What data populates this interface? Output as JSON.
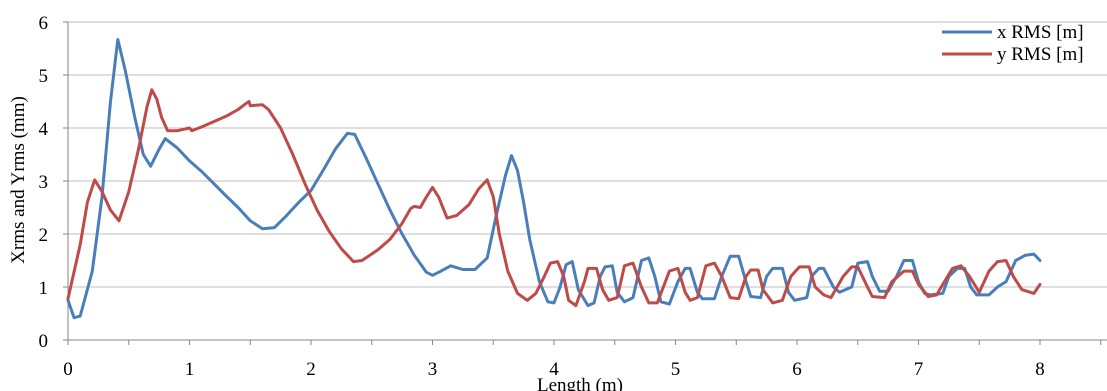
{
  "chart_data": {
    "type": "line",
    "title": "",
    "xlabel": "Length (m)",
    "ylabel": "Xrms and Yrms (mm)",
    "xlim": [
      0,
      8.6
    ],
    "ylim": [
      0,
      6
    ],
    "x_ticks": [
      "0",
      "1",
      "2",
      "3",
      "4",
      "5",
      "6",
      "7",
      "8"
    ],
    "y_ticks": [
      "0",
      "1",
      "2",
      "3",
      "4",
      "5",
      "6"
    ],
    "grid": "horizontal",
    "legend_position": "top-right",
    "series": [
      {
        "name": "x RMS [m]",
        "color": "#4a7ebb",
        "points": [
          [
            0,
            0.75
          ],
          [
            0.05,
            0.42
          ],
          [
            0.1,
            0.45
          ],
          [
            0.2,
            1.3
          ],
          [
            0.28,
            2.7
          ],
          [
            0.35,
            4.5
          ],
          [
            0.41,
            5.67
          ],
          [
            0.47,
            5.1
          ],
          [
            0.55,
            4.2
          ],
          [
            0.62,
            3.5
          ],
          [
            0.68,
            3.28
          ],
          [
            0.75,
            3.6
          ],
          [
            0.8,
            3.8
          ],
          [
            0.9,
            3.62
          ],
          [
            1.0,
            3.38
          ],
          [
            1.1,
            3.18
          ],
          [
            1.2,
            2.95
          ],
          [
            1.3,
            2.72
          ],
          [
            1.4,
            2.5
          ],
          [
            1.5,
            2.25
          ],
          [
            1.6,
            2.1
          ],
          [
            1.7,
            2.12
          ],
          [
            1.8,
            2.35
          ],
          [
            1.9,
            2.6
          ],
          [
            2.0,
            2.82
          ],
          [
            2.1,
            3.2
          ],
          [
            2.2,
            3.6
          ],
          [
            2.3,
            3.9
          ],
          [
            2.36,
            3.88
          ],
          [
            2.45,
            3.45
          ],
          [
            2.55,
            2.95
          ],
          [
            2.65,
            2.45
          ],
          [
            2.75,
            2.0
          ],
          [
            2.85,
            1.6
          ],
          [
            2.95,
            1.28
          ],
          [
            3.0,
            1.22
          ],
          [
            3.07,
            1.3
          ],
          [
            3.15,
            1.4
          ],
          [
            3.25,
            1.33
          ],
          [
            3.35,
            1.33
          ],
          [
            3.45,
            1.55
          ],
          [
            3.52,
            2.3
          ],
          [
            3.6,
            3.1
          ],
          [
            3.65,
            3.48
          ],
          [
            3.7,
            3.2
          ],
          [
            3.75,
            2.6
          ],
          [
            3.8,
            1.9
          ],
          [
            3.88,
            1.1
          ],
          [
            3.95,
            0.72
          ],
          [
            4.0,
            0.7
          ],
          [
            4.05,
            1.0
          ],
          [
            4.1,
            1.42
          ],
          [
            4.15,
            1.48
          ],
          [
            4.2,
            0.95
          ],
          [
            4.28,
            0.65
          ],
          [
            4.33,
            0.7
          ],
          [
            4.38,
            1.2
          ],
          [
            4.42,
            1.38
          ],
          [
            4.48,
            1.4
          ],
          [
            4.52,
            0.9
          ],
          [
            4.58,
            0.72
          ],
          [
            4.65,
            0.8
          ],
          [
            4.72,
            1.5
          ],
          [
            4.78,
            1.55
          ],
          [
            4.83,
            1.2
          ],
          [
            4.88,
            0.72
          ],
          [
            4.95,
            0.68
          ],
          [
            5.02,
            1.1
          ],
          [
            5.08,
            1.35
          ],
          [
            5.12,
            1.35
          ],
          [
            5.18,
            0.9
          ],
          [
            5.22,
            0.78
          ],
          [
            5.32,
            0.78
          ],
          [
            5.38,
            1.2
          ],
          [
            5.45,
            1.58
          ],
          [
            5.52,
            1.58
          ],
          [
            5.58,
            1.1
          ],
          [
            5.62,
            0.82
          ],
          [
            5.7,
            0.8
          ],
          [
            5.75,
            1.2
          ],
          [
            5.8,
            1.35
          ],
          [
            5.88,
            1.35
          ],
          [
            5.93,
            0.9
          ],
          [
            5.98,
            0.75
          ],
          [
            6.08,
            0.8
          ],
          [
            6.12,
            1.2
          ],
          [
            6.18,
            1.35
          ],
          [
            6.22,
            1.35
          ],
          [
            6.3,
            1.0
          ],
          [
            6.35,
            0.9
          ],
          [
            6.45,
            1.0
          ],
          [
            6.5,
            1.45
          ],
          [
            6.58,
            1.48
          ],
          [
            6.62,
            1.2
          ],
          [
            6.68,
            0.92
          ],
          [
            6.75,
            0.92
          ],
          [
            6.82,
            1.2
          ],
          [
            6.88,
            1.5
          ],
          [
            6.95,
            1.5
          ],
          [
            7.0,
            1.1
          ],
          [
            7.05,
            0.88
          ],
          [
            7.1,
            0.85
          ],
          [
            7.2,
            0.88
          ],
          [
            7.25,
            1.2
          ],
          [
            7.32,
            1.35
          ],
          [
            7.38,
            1.35
          ],
          [
            7.43,
            1.0
          ],
          [
            7.48,
            0.85
          ],
          [
            7.58,
            0.85
          ],
          [
            7.65,
            1.0
          ],
          [
            7.72,
            1.1
          ],
          [
            7.8,
            1.5
          ],
          [
            7.88,
            1.6
          ],
          [
            7.95,
            1.62
          ],
          [
            8.0,
            1.5
          ]
        ]
      },
      {
        "name": "y RMS [m]",
        "color": "#be4b48",
        "points": [
          [
            0,
            0.78
          ],
          [
            0.1,
            1.8
          ],
          [
            0.16,
            2.6
          ],
          [
            0.22,
            3.02
          ],
          [
            0.28,
            2.8
          ],
          [
            0.35,
            2.45
          ],
          [
            0.42,
            2.25
          ],
          [
            0.5,
            2.8
          ],
          [
            0.58,
            3.6
          ],
          [
            0.65,
            4.4
          ],
          [
            0.69,
            4.72
          ],
          [
            0.73,
            4.55
          ],
          [
            0.77,
            4.2
          ],
          [
            0.82,
            3.95
          ],
          [
            0.9,
            3.95
          ],
          [
            1.0,
            4.0
          ],
          [
            1.02,
            3.95
          ],
          [
            1.1,
            4.02
          ],
          [
            1.2,
            4.12
          ],
          [
            1.3,
            4.22
          ],
          [
            1.4,
            4.35
          ],
          [
            1.47,
            4.47
          ],
          [
            1.49,
            4.5
          ],
          [
            1.5,
            4.42
          ],
          [
            1.6,
            4.44
          ],
          [
            1.65,
            4.35
          ],
          [
            1.75,
            4.0
          ],
          [
            1.85,
            3.5
          ],
          [
            1.95,
            2.95
          ],
          [
            2.05,
            2.45
          ],
          [
            2.15,
            2.05
          ],
          [
            2.25,
            1.72
          ],
          [
            2.35,
            1.48
          ],
          [
            2.42,
            1.5
          ],
          [
            2.55,
            1.7
          ],
          [
            2.65,
            1.9
          ],
          [
            2.75,
            2.2
          ],
          [
            2.82,
            2.48
          ],
          [
            2.85,
            2.52
          ],
          [
            2.9,
            2.5
          ],
          [
            2.95,
            2.7
          ],
          [
            3.0,
            2.88
          ],
          [
            3.05,
            2.7
          ],
          [
            3.12,
            2.3
          ],
          [
            3.2,
            2.35
          ],
          [
            3.3,
            2.55
          ],
          [
            3.38,
            2.85
          ],
          [
            3.45,
            3.02
          ],
          [
            3.5,
            2.7
          ],
          [
            3.55,
            2.0
          ],
          [
            3.62,
            1.3
          ],
          [
            3.7,
            0.88
          ],
          [
            3.78,
            0.75
          ],
          [
            3.85,
            0.88
          ],
          [
            3.92,
            1.2
          ],
          [
            3.97,
            1.45
          ],
          [
            4.03,
            1.48
          ],
          [
            4.08,
            1.2
          ],
          [
            4.12,
            0.75
          ],
          [
            4.18,
            0.65
          ],
          [
            4.25,
            1.1
          ],
          [
            4.28,
            1.35
          ],
          [
            4.35,
            1.35
          ],
          [
            4.4,
            0.95
          ],
          [
            4.45,
            0.75
          ],
          [
            4.52,
            0.8
          ],
          [
            4.58,
            1.4
          ],
          [
            4.65,
            1.45
          ],
          [
            4.72,
            1.0
          ],
          [
            4.78,
            0.7
          ],
          [
            4.85,
            0.7
          ],
          [
            4.95,
            1.3
          ],
          [
            5.02,
            1.35
          ],
          [
            5.08,
            0.9
          ],
          [
            5.12,
            0.75
          ],
          [
            5.18,
            0.8
          ],
          [
            5.25,
            1.4
          ],
          [
            5.32,
            1.45
          ],
          [
            5.38,
            1.2
          ],
          [
            5.45,
            0.8
          ],
          [
            5.52,
            0.78
          ],
          [
            5.58,
            1.2
          ],
          [
            5.62,
            1.32
          ],
          [
            5.68,
            1.32
          ],
          [
            5.72,
            0.95
          ],
          [
            5.8,
            0.7
          ],
          [
            5.88,
            0.75
          ],
          [
            5.95,
            1.2
          ],
          [
            6.02,
            1.38
          ],
          [
            6.1,
            1.38
          ],
          [
            6.15,
            1.0
          ],
          [
            6.22,
            0.85
          ],
          [
            6.28,
            0.8
          ],
          [
            6.38,
            1.2
          ],
          [
            6.45,
            1.38
          ],
          [
            6.5,
            1.38
          ],
          [
            6.58,
            1.0
          ],
          [
            6.62,
            0.82
          ],
          [
            6.72,
            0.8
          ],
          [
            6.78,
            1.1
          ],
          [
            6.88,
            1.3
          ],
          [
            6.95,
            1.3
          ],
          [
            7.0,
            1.05
          ],
          [
            7.08,
            0.82
          ],
          [
            7.15,
            0.85
          ],
          [
            7.2,
            1.05
          ],
          [
            7.28,
            1.35
          ],
          [
            7.35,
            1.4
          ],
          [
            7.42,
            1.2
          ],
          [
            7.5,
            0.9
          ],
          [
            7.58,
            1.3
          ],
          [
            7.65,
            1.48
          ],
          [
            7.72,
            1.5
          ],
          [
            7.78,
            1.2
          ],
          [
            7.85,
            0.95
          ],
          [
            7.95,
            0.88
          ],
          [
            8.0,
            1.05
          ]
        ]
      }
    ]
  }
}
